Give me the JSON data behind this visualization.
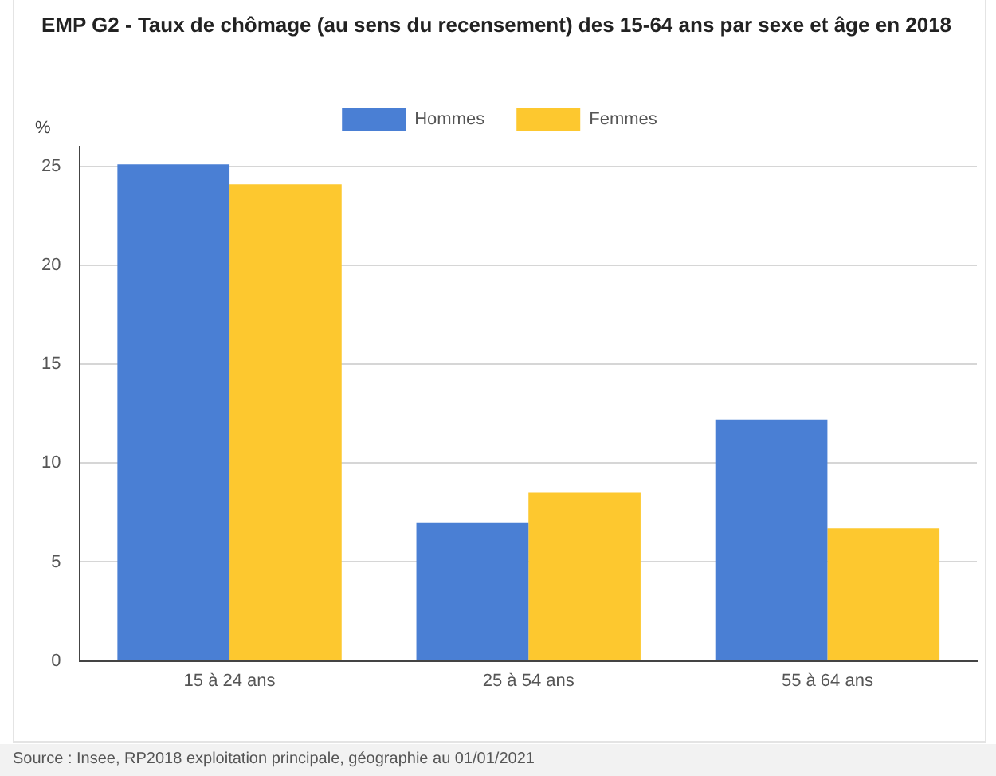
{
  "chart_data": {
    "type": "bar",
    "title": "EMP G2 - Taux de chômage (au sens du recensement) des 15-64 ans par sexe et âge en 2018",
    "ylabel": "%",
    "categories": [
      "15 à 24 ans",
      "25 à 54 ans",
      "55 à 64 ans"
    ],
    "series": [
      {
        "name": "Hommes",
        "color": "#4a7fd4",
        "values": [
          25.1,
          7.0,
          12.2
        ]
      },
      {
        "name": "Femmes",
        "color": "#fdc82f",
        "values": [
          24.1,
          8.5,
          6.7
        ]
      }
    ],
    "ylim": [
      0,
      26
    ],
    "yticks": [
      0,
      5,
      10,
      15,
      20,
      25
    ],
    "grid": "y",
    "legend": "top",
    "annotations": [
      "Source : Insee, RP2018 exploitation principale, géographie au 01/01/2021"
    ]
  }
}
